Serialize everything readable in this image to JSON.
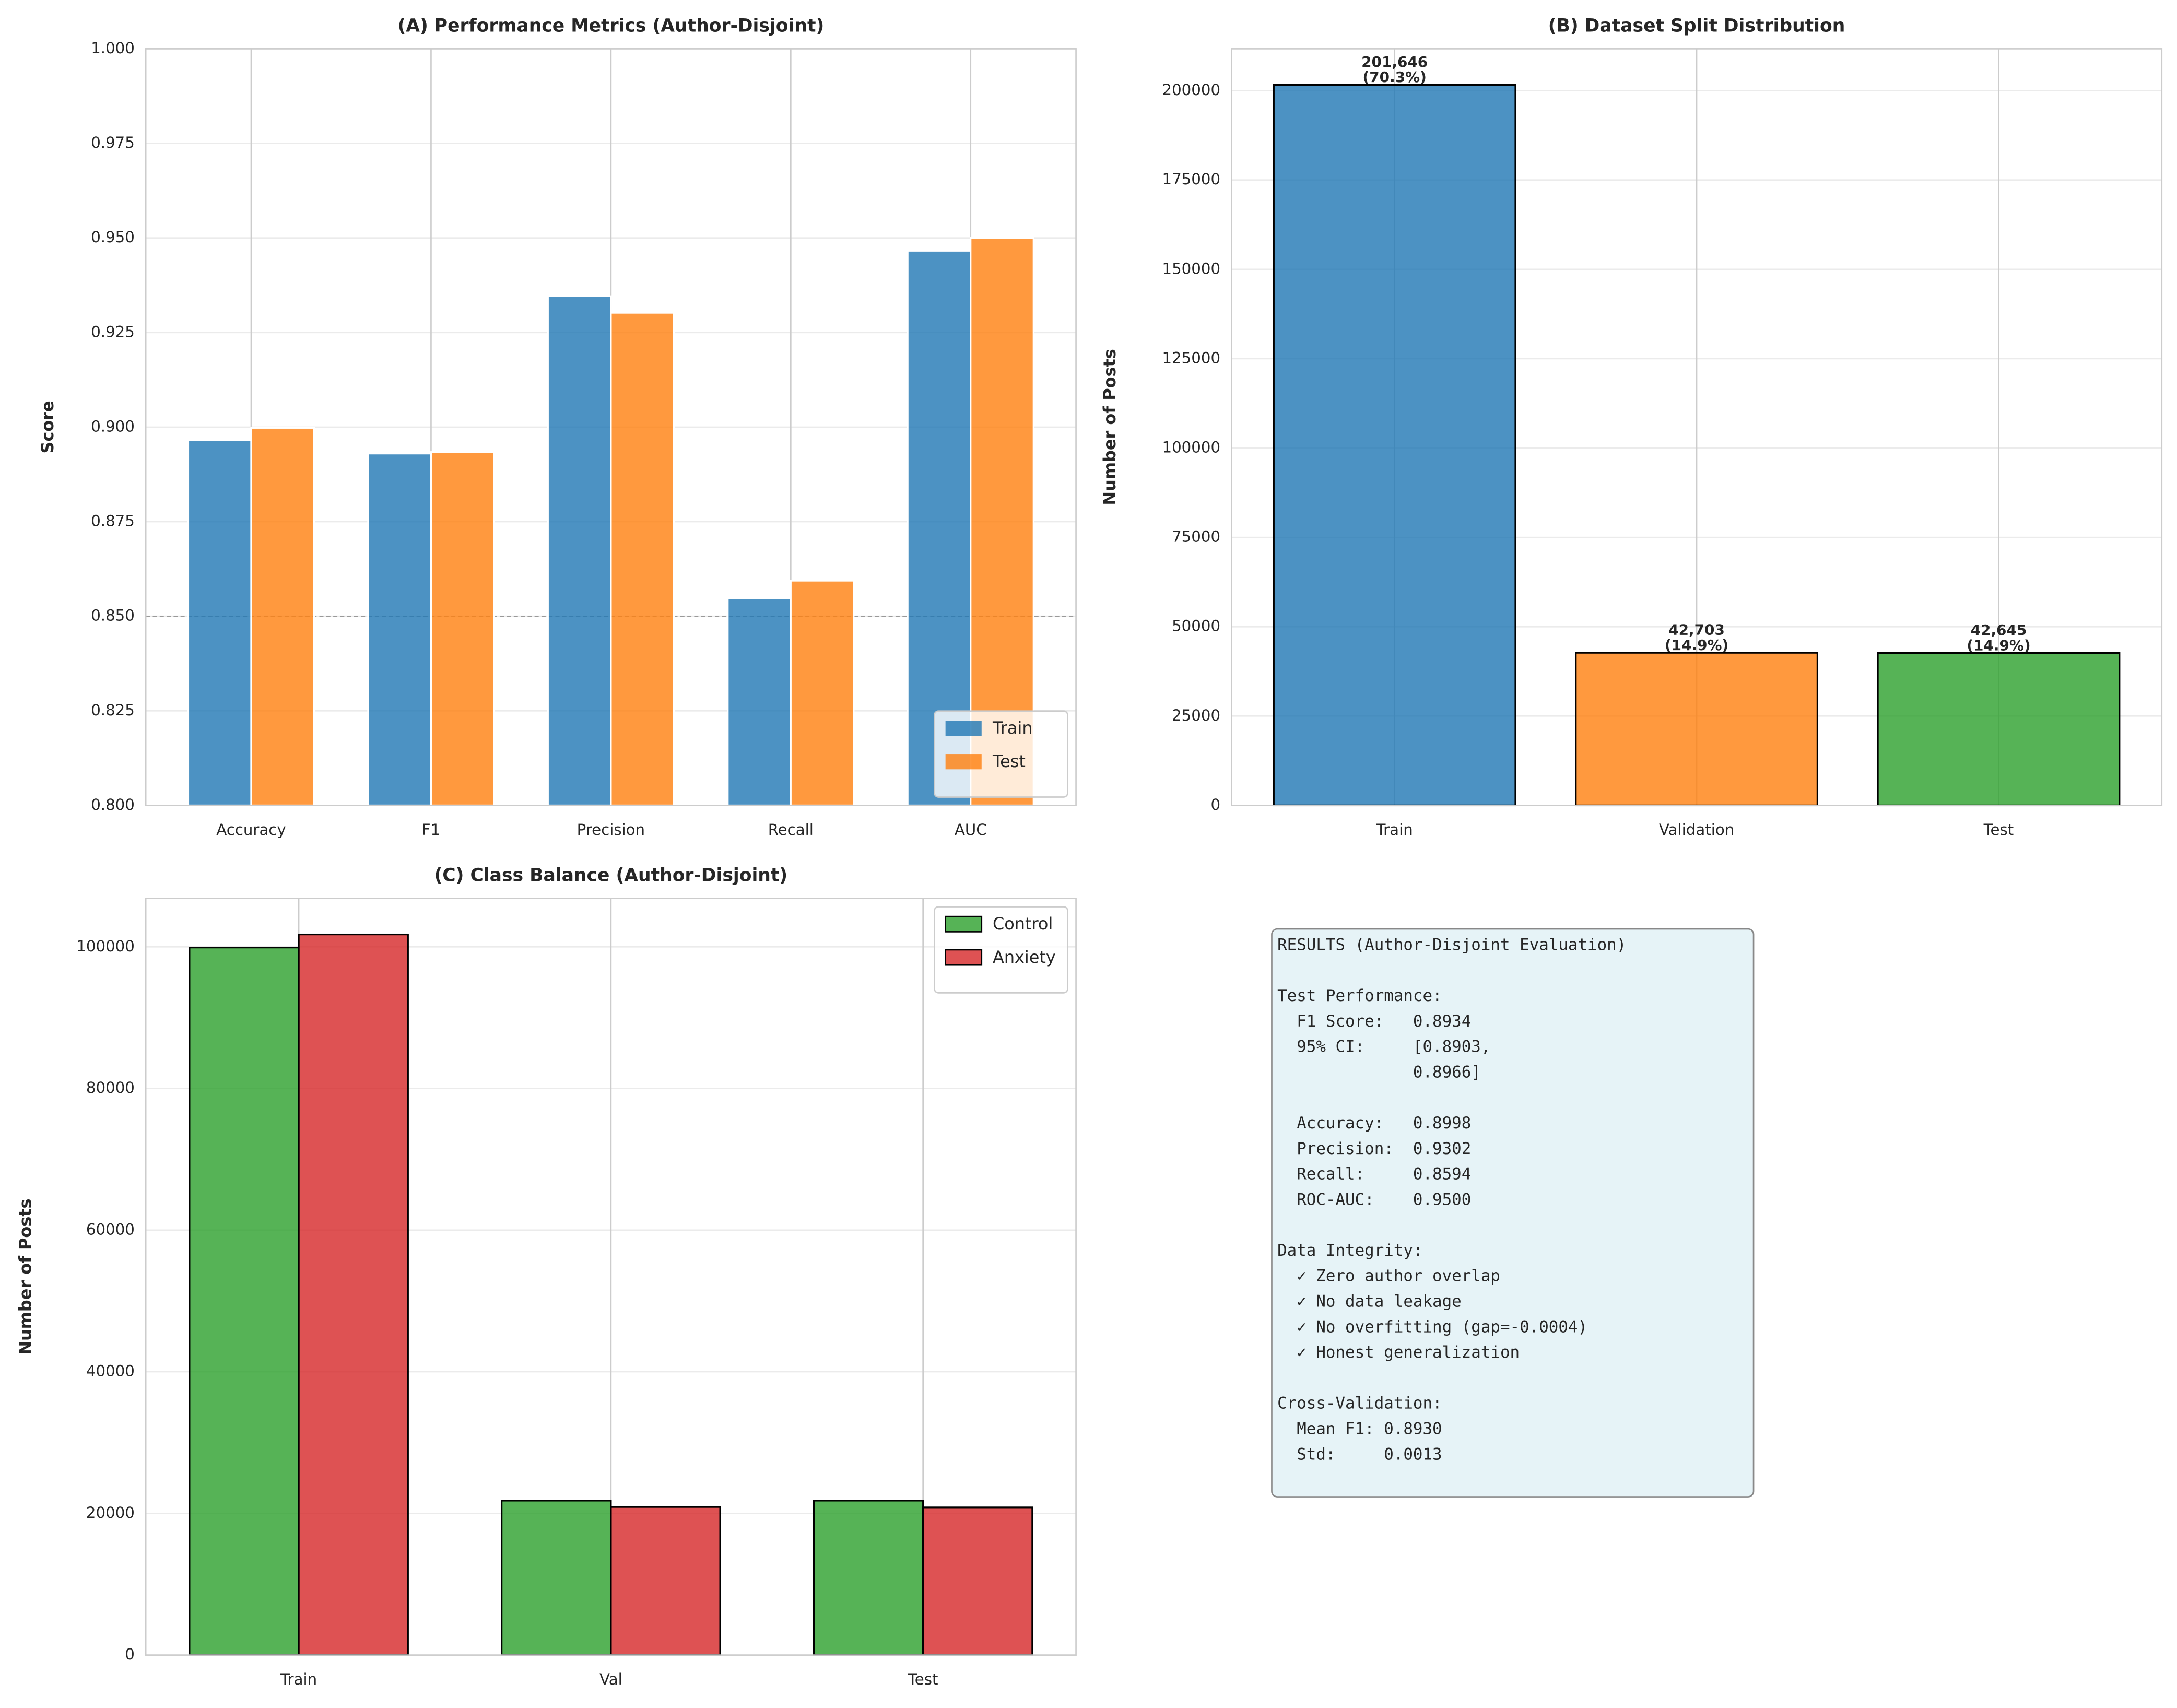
{
  "chart_data": [
    {
      "type": "bar",
      "title": "(A) Performance Metrics (Author-Disjoint)",
      "ylabel": "Score",
      "categories": [
        "Accuracy",
        "F1",
        "Precision",
        "Recall",
        "AUC"
      ],
      "series": [
        {
          "name": "Train",
          "color": "#1f77b4",
          "values": [
            0.8966,
            0.893,
            0.9346,
            0.8548,
            0.9466
          ]
        },
        {
          "name": "Test",
          "color": "#ff7f0e",
          "values": [
            0.8998,
            0.8934,
            0.9302,
            0.8594,
            0.95
          ]
        }
      ],
      "edgecolor": "#ffffff",
      "reference_line": 0.85,
      "ylim": [
        0.8,
        1.0
      ],
      "yticks": [
        {
          "value": 0.8,
          "label": "0.800"
        },
        {
          "value": 0.825,
          "label": "0.825"
        },
        {
          "value": 0.85,
          "label": "0.850"
        },
        {
          "value": 0.875,
          "label": "0.875"
        },
        {
          "value": 0.9,
          "label": "0.900"
        },
        {
          "value": 0.925,
          "label": "0.925"
        },
        {
          "value": 0.95,
          "label": "0.950"
        },
        {
          "value": 0.975,
          "label": "0.975"
        },
        {
          "value": 1.0,
          "label": "1.000"
        }
      ],
      "grid": true,
      "legend": "lower right"
    },
    {
      "type": "bar",
      "title": "(B) Dataset Split Distribution",
      "ylabel": "Number of Posts",
      "categories": [
        "Train",
        "Validation",
        "Test"
      ],
      "values": [
        201646,
        42703,
        42645
      ],
      "value_labels": [
        "201,646\n(70.3%)",
        "42,703\n(14.9%)",
        "42,645\n(14.9%)"
      ],
      "colors": [
        "#1f77b4",
        "#ff7f0e",
        "#2ca02c"
      ],
      "edgecolor": "#000000",
      "ylim": [
        0,
        211728
      ],
      "yticks": [
        0,
        25000,
        50000,
        75000,
        100000,
        125000,
        150000,
        175000,
        200000
      ],
      "grid": true
    },
    {
      "type": "bar",
      "title": "(C) Class Balance (Author-Disjoint)",
      "ylabel": "Number of Posts",
      "categories": [
        "Train",
        "Val",
        "Test"
      ],
      "series": [
        {
          "name": "Control",
          "color": "#2ca02c",
          "values": [
            99900,
            21800,
            21800
          ]
        },
        {
          "name": "Anxiety",
          "color": "#d62728",
          "values": [
            101746,
            20903,
            20845
          ]
        }
      ],
      "edgecolor": "#000000",
      "ylim": [
        0,
        106833
      ],
      "yticks": [
        0,
        20000,
        40000,
        60000,
        80000,
        100000
      ],
      "grid": true,
      "legend": "upper right"
    }
  ],
  "text_panel": {
    "lines": [
      "RESULTS (Author-Disjoint Evaluation)",
      "",
      "Test Performance:",
      "  F1 Score:   0.8934",
      "  95% CI:     [0.8903,",
      "              0.8966]",
      "",
      "  Accuracy:   0.8998",
      "  Precision:  0.9302",
      "  Recall:     0.8594",
      "  ROC-AUC:    0.9500",
      "",
      "Data Integrity:",
      "  ✓ Zero author overlap",
      "  ✓ No data leakage",
      "  ✓ No overfitting (gap=-0.0004)",
      "  ✓ Honest generalization",
      "",
      "Cross-Validation:",
      "  Mean F1: 0.8930",
      "  Std:     0.0013"
    ]
  }
}
